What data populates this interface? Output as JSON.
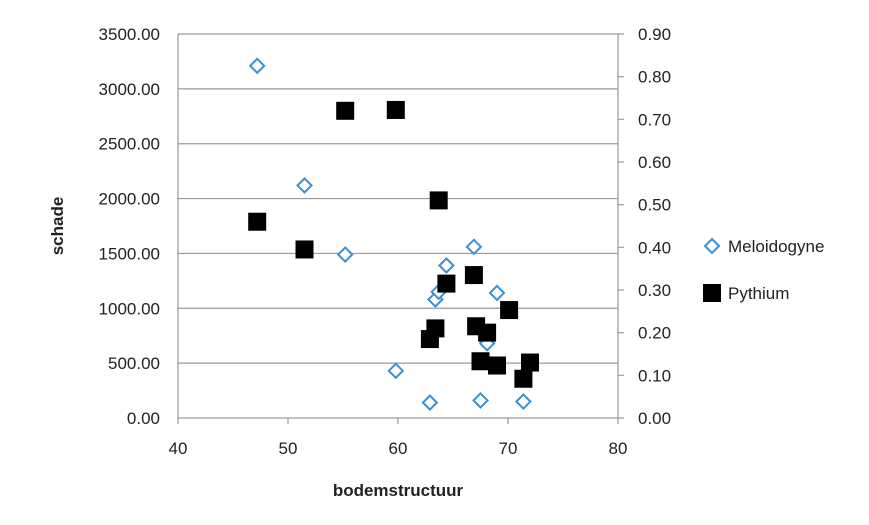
{
  "chart_data": {
    "type": "scatter",
    "title": "",
    "xlabel": "bodemstructuur",
    "ylabel": "schade",
    "y2label": "",
    "xlim": [
      40,
      80
    ],
    "ylim": [
      0,
      3500
    ],
    "y2lim": [
      0,
      0.9
    ],
    "xticks": [
      "40",
      "50",
      "60",
      "70",
      "80"
    ],
    "yticks": [
      "0.00",
      "500.00",
      "1000.00",
      "1500.00",
      "2000.00",
      "2500.00",
      "3000.00",
      "3500.00"
    ],
    "y2ticks": [
      "0.00",
      "0.10",
      "0.20",
      "0.30",
      "0.40",
      "0.50",
      "0.60",
      "0.70",
      "0.80",
      "0.90"
    ],
    "grid": true,
    "legend_position": "right",
    "series": [
      {
        "name": "Meloidogyne",
        "axis": "left",
        "marker": "diamond-open",
        "color": "#3b8fd6",
        "x": [
          47.2,
          51.5,
          55.2,
          59.8,
          62.9,
          63.4,
          63.7,
          64.4,
          66.9,
          67.5,
          68.1,
          69.0,
          71.4
        ],
        "y": [
          3210,
          2120,
          1490,
          430,
          140,
          1080,
          1150,
          1390,
          1560,
          160,
          680,
          1140,
          150
        ]
      },
      {
        "name": "Pythium",
        "axis": "right",
        "marker": "square-filled",
        "color": "#000000",
        "x": [
          47.2,
          51.5,
          55.2,
          59.8,
          62.9,
          63.4,
          63.7,
          64.4,
          66.9,
          67.1,
          67.5,
          68.1,
          69.0,
          70.1,
          71.4,
          72.0
        ],
        "y": [
          0.46,
          0.395,
          0.72,
          0.722,
          0.185,
          0.21,
          0.51,
          0.315,
          0.335,
          0.215,
          0.133,
          0.2,
          0.123,
          0.253,
          0.092,
          0.13
        ]
      }
    ]
  }
}
